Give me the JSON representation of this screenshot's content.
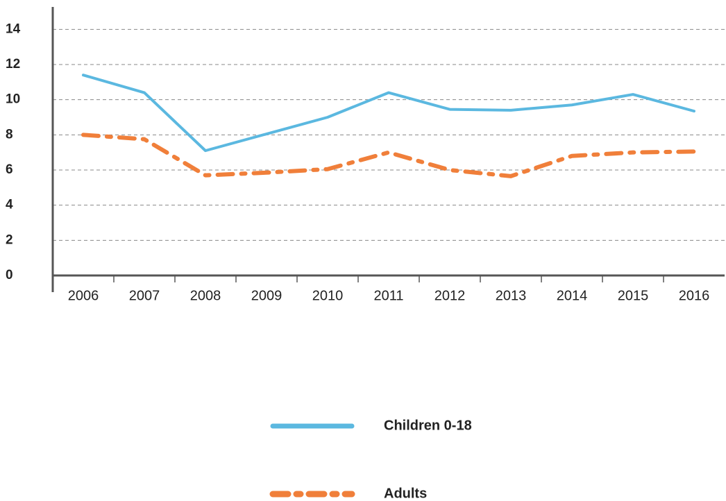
{
  "chart_data": {
    "type": "line",
    "categories": [
      "2006",
      "2007",
      "2008",
      "2009",
      "2010",
      "2011",
      "2012",
      "2013",
      "2014",
      "2015",
      "2016"
    ],
    "series": [
      {
        "name": "Children 0-18",
        "color": "#5bb8e0",
        "line_style": "solid",
        "values": [
          11.4,
          10.4,
          7.1,
          8.05,
          9.0,
          10.4,
          9.45,
          9.4,
          9.7,
          10.3,
          9.35
        ]
      },
      {
        "name": "Adults",
        "color": "#f07f3a",
        "line_style": "dashdot",
        "values": [
          8.0,
          7.75,
          5.7,
          5.85,
          6.05,
          7.0,
          6.0,
          5.65,
          6.8,
          7.0,
          7.05
        ]
      }
    ],
    "ylim": [
      0,
      15
    ],
    "yticks": [
      0,
      2,
      4,
      6,
      8,
      10,
      12,
      14
    ],
    "grid": true,
    "legend": "bottom"
  }
}
